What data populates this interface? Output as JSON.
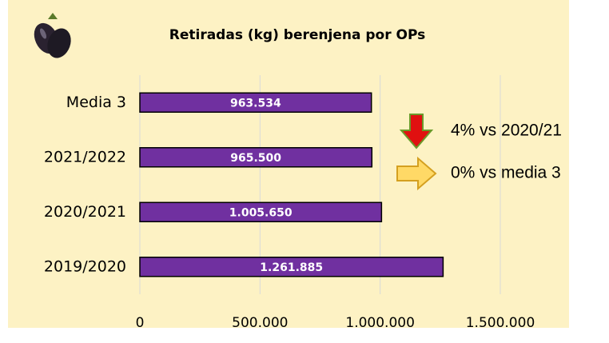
{
  "chart_data": {
    "type": "hbar",
    "title": "Retiradas (kg) berenjena por OPs",
    "categories": [
      "Media 3",
      "2021/2022",
      "2020/2021",
      "2019/2020"
    ],
    "values": [
      963534,
      965500,
      1005650,
      1261885
    ],
    "value_labels": [
      "963.534",
      "965.500",
      "1.005.650",
      "1.261.885"
    ],
    "color": "#7030a0",
    "xlim": [
      0,
      1500000
    ],
    "xticks": [
      0,
      {
        "value": 500000,
        "label": "500.000"
      },
      {
        "value": 1000000,
        "label": "1.000.000"
      },
      {
        "value": 1500000,
        "label": "1.500.000"
      }
    ],
    "grid": true,
    "annotations": [
      "4% vs 2020/21",
      "0% vs media 3"
    ]
  }
}
